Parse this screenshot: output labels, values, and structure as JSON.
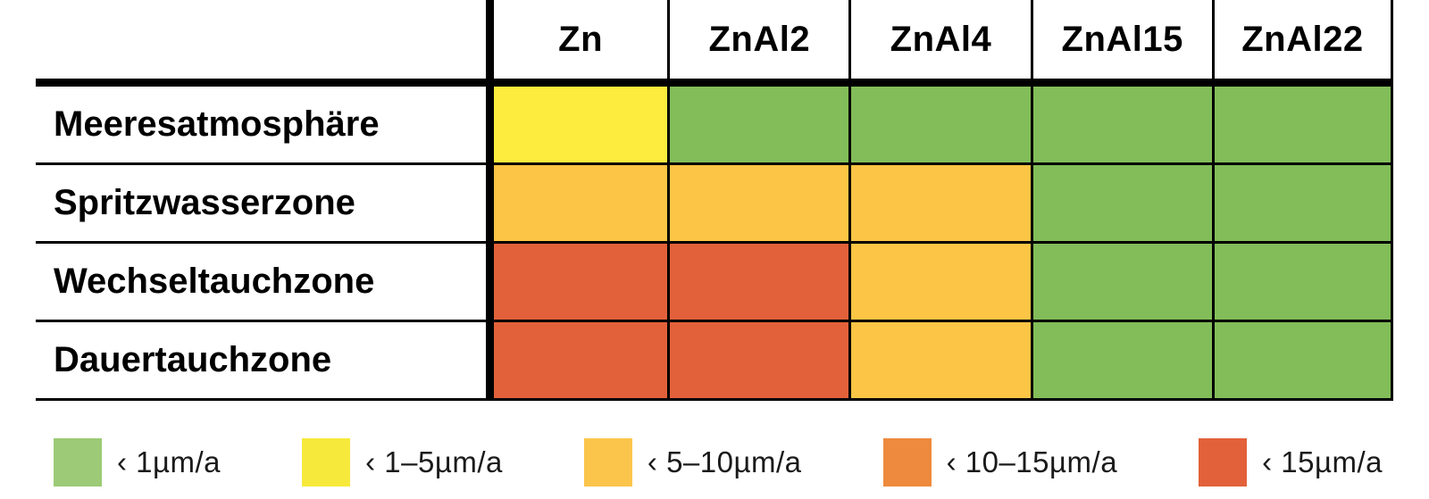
{
  "table": {
    "columns": [
      "Zn",
      "ZnAl2",
      "ZnAl4",
      "ZnAl15",
      "ZnAl22"
    ],
    "rows": [
      {
        "label": "Meeresatmosphäre",
        "cells": [
          "yellow",
          "green",
          "green",
          "green",
          "green"
        ]
      },
      {
        "label": "Spritzwasserzone",
        "cells": [
          "amber",
          "amber",
          "amber",
          "green",
          "green"
        ]
      },
      {
        "label": "Wechseltauchzone",
        "cells": [
          "red",
          "red",
          "amber",
          "green",
          "green"
        ]
      },
      {
        "label": "Dauertauchzone",
        "cells": [
          "red",
          "red",
          "amber",
          "green",
          "green"
        ]
      }
    ]
  },
  "legend": {
    "items": [
      {
        "color": "green",
        "label": "‹ 1µm/a"
      },
      {
        "color": "yellow",
        "label": "‹ 1–5µm/a"
      },
      {
        "color": "amber",
        "label": "‹ 5–10µm/a"
      },
      {
        "color": "orange",
        "label": "‹ 10–15µm/a"
      },
      {
        "color": "red",
        "label": "‹ 15µm/a"
      }
    ]
  },
  "colors": {
    "cell": {
      "green": "#82BD59",
      "yellow": "#FDEC3D",
      "amber": "#FCC545",
      "orange": "#EE8A3D",
      "red": "#E2613A"
    },
    "legend": {
      "green": "#9CCA76",
      "yellow": "#F7E93B",
      "amber": "#FBC54B",
      "orange": "#EE8A3D",
      "red": "#E2613A"
    },
    "line": "#000000"
  },
  "chart_data": {
    "type": "heatmap",
    "columns": [
      "Zn",
      "ZnAl2",
      "ZnAl4",
      "ZnAl15",
      "ZnAl22"
    ],
    "rows": [
      "Meeresatmosphäre",
      "Spritzwasserzone",
      "Wechseltauchzone",
      "Dauertauchzone"
    ],
    "values": [
      [
        "‹ 1–5µm/a",
        "‹ 1µm/a",
        "‹ 1µm/a",
        "‹ 1µm/a",
        "‹ 1µm/a"
      ],
      [
        "‹ 5–10µm/a",
        "‹ 5–10µm/a",
        "‹ 5–10µm/a",
        "‹ 1µm/a",
        "‹ 1µm/a"
      ],
      [
        "‹ 15µm/a",
        "‹ 15µm/a",
        "‹ 5–10µm/a",
        "‹ 1µm/a",
        "‹ 1µm/a"
      ],
      [
        "‹ 15µm/a",
        "‹ 15µm/a",
        "‹ 5–10µm/a",
        "‹ 1µm/a",
        "‹ 1µm/a"
      ]
    ],
    "legend_entries": [
      "‹ 1µm/a",
      "‹ 1–5µm/a",
      "‹ 5–10µm/a",
      "‹ 10–15µm/a",
      "‹ 15µm/a"
    ],
    "legend_position": "bottom",
    "grid": true,
    "title": ""
  }
}
